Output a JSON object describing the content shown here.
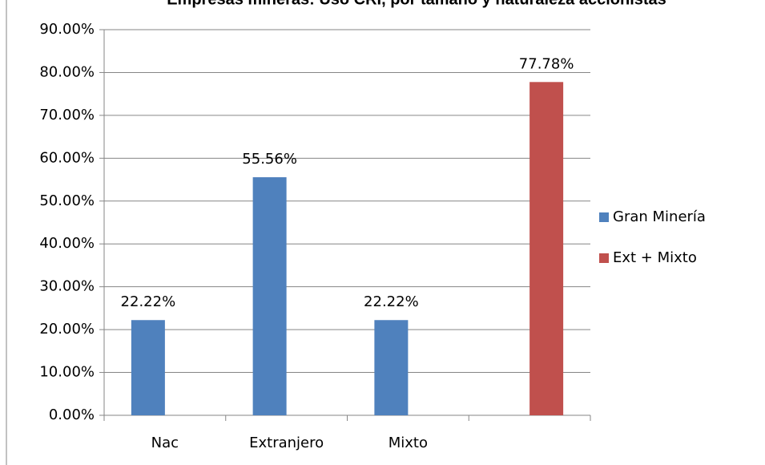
{
  "chart_data": {
    "type": "bar",
    "title": "Empresas mineras: Uso CRI, por tamaño y naturaleza accionistas",
    "categories": [
      "Nac",
      "Extranjero",
      "Mixto",
      null
    ],
    "series": [
      {
        "name": "Gran Minería",
        "color": "#4f81bd",
        "values": [
          22.22,
          55.56,
          22.22,
          null
        ],
        "value_labels": [
          "22.22%",
          "55.56%",
          "22.22%",
          null
        ]
      },
      {
        "name": "Ext + Mixto",
        "color": "#c0504d",
        "values": [
          null,
          null,
          null,
          77.78
        ],
        "value_labels": [
          null,
          null,
          null,
          "77.78%"
        ]
      }
    ],
    "ylim": [
      0,
      90
    ],
    "yticks": [
      {
        "value": 0,
        "label": "0.00%"
      },
      {
        "value": 10,
        "label": "10.00%"
      },
      {
        "value": 20,
        "label": "20.00%"
      },
      {
        "value": 30,
        "label": "30.00%"
      },
      {
        "value": 40,
        "label": "40.00%"
      },
      {
        "value": 50,
        "label": "50.00%"
      },
      {
        "value": 60,
        "label": "60.00%"
      },
      {
        "value": 70,
        "label": "70.00%"
      },
      {
        "value": 80,
        "label": "80.00%"
      },
      {
        "value": 90,
        "label": "90.00%"
      }
    ],
    "grid": true,
    "legend": "right"
  }
}
